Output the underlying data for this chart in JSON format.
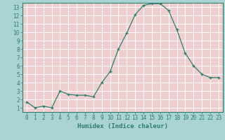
{
  "x": [
    0,
    1,
    2,
    3,
    4,
    5,
    6,
    7,
    8,
    9,
    10,
    11,
    12,
    13,
    14,
    15,
    16,
    17,
    18,
    19,
    20,
    21,
    22,
    23
  ],
  "y": [
    1.7,
    1.0,
    1.2,
    1.0,
    3.0,
    2.6,
    2.5,
    2.5,
    2.3,
    4.0,
    5.3,
    8.0,
    9.9,
    12.1,
    13.2,
    13.4,
    13.4,
    12.6,
    10.3,
    7.5,
    6.0,
    5.0,
    4.6,
    4.6
  ],
  "xlabel": "Humidex (Indice chaleur)",
  "line_color": "#2e7d6e",
  "marker": "+",
  "marker_color": "#2e7d6e",
  "bg_color": "#aad4d4",
  "plot_bg_color": "#eecece",
  "grid_color": "#ffffff",
  "axis_color": "#2e7d6e",
  "tick_color": "#2e7d6e",
  "label_color": "#2e7d6e",
  "ylim": [
    0.5,
    13.5
  ],
  "xlim": [
    -0.5,
    23.5
  ],
  "yticks": [
    1,
    2,
    3,
    4,
    5,
    6,
    7,
    8,
    9,
    10,
    11,
    12,
    13
  ],
  "xticks": [
    0,
    1,
    2,
    3,
    4,
    5,
    6,
    7,
    8,
    9,
    10,
    11,
    12,
    13,
    14,
    15,
    16,
    17,
    18,
    19,
    20,
    21,
    22,
    23
  ]
}
